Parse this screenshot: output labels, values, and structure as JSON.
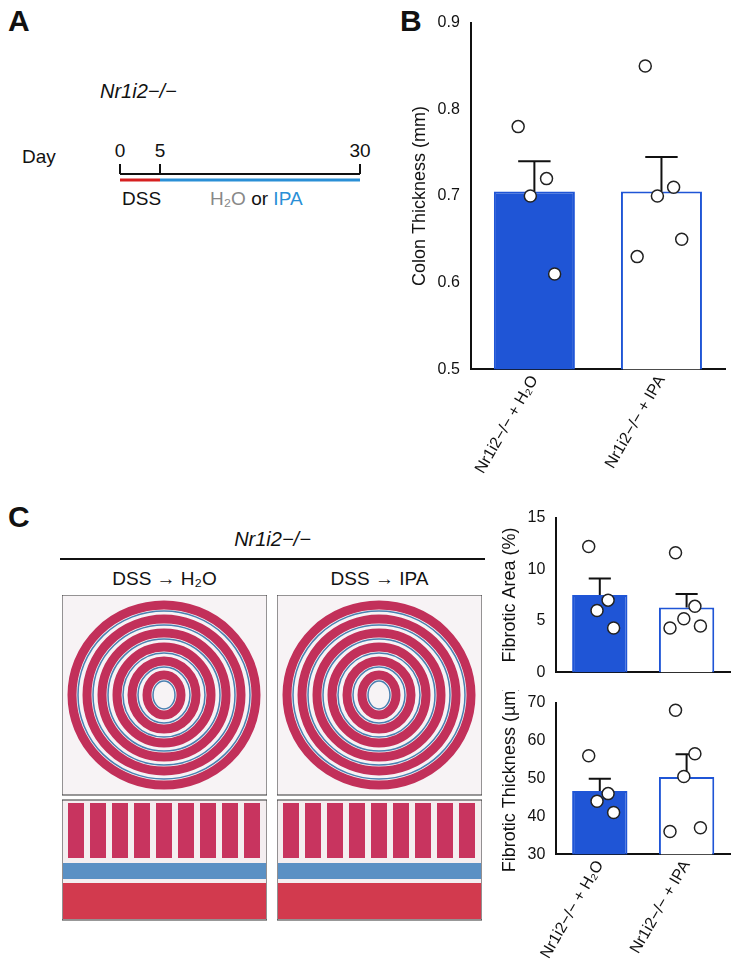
{
  "panel_labels": [
    "A",
    "B",
    "C"
  ],
  "timeline": {
    "genotype": "Nr1i2−/−",
    "axis_label": "Day",
    "days": [
      0,
      5,
      30
    ],
    "first_treatment": "DSS",
    "second_treatment": [
      "H₂O",
      "or",
      "IPA"
    ]
  },
  "histology": {
    "genotype": "Nr1i2−/−",
    "columns": [
      "DSS → H₂O",
      "DSS → IPA"
    ]
  },
  "chart_data": [
    {
      "type": "bar",
      "y_label": "Colon Thickness (mm)",
      "categories": [
        "Nr1i2−/− + H₂O",
        "Nr1i2−/− + IPA"
      ],
      "values": [
        0.705,
        0.705
      ],
      "errors": [
        0.035,
        0.04
      ],
      "points": [
        [
          0.78,
          0.72,
          0.7,
          0.61
        ],
        [
          0.85,
          0.71,
          0.7,
          0.65,
          0.63
        ]
      ],
      "colors": [
        "#1f55d6",
        "#ffffff"
      ],
      "ylim": [
        0.5,
        0.9
      ],
      "yticks": [
        0.5,
        0.6,
        0.7,
        0.8,
        0.9
      ],
      "grid": false
    },
    {
      "type": "bar",
      "y_label": "Fibrotic Area (%)",
      "categories": [
        "Nr1i2−/− + H₂O",
        "Nr1i2−/− + IPA"
      ],
      "values": [
        7.5,
        6.3
      ],
      "errors": [
        1.6,
        1.3
      ],
      "points": [
        [
          12.2,
          7.0,
          6.0,
          4.3
        ],
        [
          11.6,
          6.4,
          5.2,
          4.5,
          4.3
        ]
      ],
      "colors": [
        "#1f55d6",
        "#ffffff"
      ],
      "ylim": [
        0,
        15
      ],
      "yticks": [
        0,
        5,
        10,
        15
      ],
      "grid": false,
      "tick_labels": "y"
    },
    {
      "type": "bar",
      "y_label": "Fibrotic Thickness (µm)",
      "categories": [
        "Nr1i2−/− + H₂O",
        "Nr1i2−/− + IPA"
      ],
      "values": [
        46.7,
        50.4
      ],
      "errors": [
        3.2,
        6.0
      ],
      "points": [
        [
          56,
          46,
          44,
          41
        ],
        [
          68,
          56.5,
          50.5,
          37,
          36
        ]
      ],
      "colors": [
        "#1f55d6",
        "#ffffff"
      ],
      "ylim": [
        30,
        70
      ],
      "yticks": [
        30,
        40,
        50,
        60,
        70
      ],
      "grid": false
    }
  ]
}
